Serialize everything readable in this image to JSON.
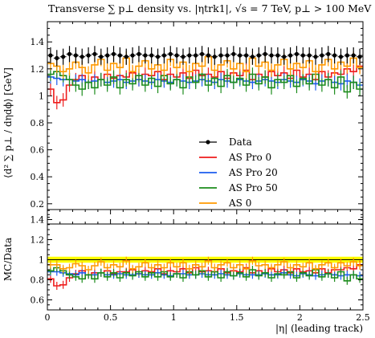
{
  "chart_data": {
    "type": "line",
    "title": "Transverse ∑ p⊥ density vs. |ηtrk1|, √s = 7 TeV, p⊥ > 100 MeV",
    "xlabel": "|η| (leading track)",
    "ylabel_main": "⟨d² ∑ p⊥ / dηdϕ⟩ [GeV]",
    "ylabel_ratio": "MC/Data",
    "xlim": [
      0,
      2.5
    ],
    "ylim_main": [
      0.05,
      1.55
    ],
    "ylim_ratio": [
      0.5,
      1.5
    ],
    "x_ticks": [
      "0",
      "0.5",
      "1",
      "1.5",
      "2",
      "2.5"
    ],
    "y_ticks_main": [
      "0.2",
      "0.4",
      "0.6",
      "0.8",
      "1",
      "1.2",
      "1.4"
    ],
    "y_ticks_ratio": [
      "0.6",
      "0.8",
      "1",
      "1.2",
      "1.4"
    ],
    "legend_position": "lower-right",
    "ratio_band": {
      "low": 0.97,
      "high": 1.03,
      "color": "#ffff00"
    },
    "series": [
      {
        "name": "Data",
        "color": "#000000",
        "style": "points",
        "values": [
          1.3,
          1.28,
          1.29,
          1.31,
          1.3,
          1.29,
          1.3,
          1.31,
          1.29,
          1.3,
          1.31,
          1.3,
          1.29,
          1.3,
          1.31,
          1.3,
          1.3,
          1.29,
          1.3,
          1.31,
          1.3,
          1.29,
          1.3,
          1.3,
          1.31,
          1.3,
          1.29,
          1.3,
          1.3,
          1.31,
          1.3,
          1.3,
          1.29,
          1.3,
          1.31,
          1.3,
          1.3,
          1.29,
          1.3,
          1.31,
          1.3,
          1.3,
          1.29,
          1.3,
          1.31,
          1.3,
          1.29,
          1.3,
          1.3,
          1.29
        ],
        "errors": [
          0.06,
          0.06,
          0.06,
          0.06,
          0.06,
          0.06,
          0.06,
          0.06,
          0.06,
          0.06,
          0.06,
          0.06,
          0.06,
          0.06,
          0.06,
          0.06,
          0.06,
          0.06,
          0.06,
          0.06,
          0.06,
          0.06,
          0.06,
          0.06,
          0.06,
          0.06,
          0.06,
          0.06,
          0.06,
          0.06,
          0.06,
          0.06,
          0.06,
          0.06,
          0.06,
          0.06,
          0.06,
          0.06,
          0.06,
          0.06,
          0.06,
          0.06,
          0.06,
          0.06,
          0.06,
          0.06,
          0.06,
          0.06,
          0.06,
          0.06
        ]
      },
      {
        "name": "AS Pro 0",
        "color": "#ee1c1c",
        "style": "step",
        "values": [
          1.05,
          0.95,
          0.97,
          1.08,
          1.12,
          1.15,
          1.1,
          1.14,
          1.12,
          1.16,
          1.13,
          1.15,
          1.14,
          1.17,
          1.12,
          1.16,
          1.15,
          1.18,
          1.12,
          1.16,
          1.14,
          1.17,
          1.13,
          1.19,
          1.15,
          1.16,
          1.14,
          1.18,
          1.13,
          1.17,
          1.15,
          1.19,
          1.12,
          1.16,
          1.14,
          1.18,
          1.15,
          1.17,
          1.13,
          1.19,
          1.14,
          1.16,
          1.12,
          1.18,
          1.14,
          1.17,
          1.16,
          1.2,
          1.18,
          1.22
        ],
        "ratio": [
          0.81,
          0.74,
          0.75,
          0.82,
          0.86,
          0.89,
          0.85,
          0.87,
          0.87,
          0.89,
          0.86,
          0.88,
          0.88,
          0.9,
          0.86,
          0.89,
          0.88,
          0.91,
          0.86,
          0.89,
          0.88,
          0.91,
          0.87,
          0.92,
          0.88,
          0.89,
          0.88,
          0.91,
          0.87,
          0.89,
          0.88,
          0.92,
          0.87,
          0.89,
          0.87,
          0.91,
          0.88,
          0.9,
          0.87,
          0.91,
          0.88,
          0.89,
          0.87,
          0.91,
          0.87,
          0.9,
          0.9,
          0.92,
          0.91,
          0.95
        ]
      },
      {
        "name": "AS Pro 20",
        "color": "#1c5cee",
        "style": "step",
        "values": [
          1.14,
          1.13,
          1.12,
          1.12,
          1.11,
          1.12,
          1.1,
          1.11,
          1.12,
          1.1,
          1.11,
          1.12,
          1.1,
          1.11,
          1.12,
          1.11,
          1.1,
          1.12,
          1.11,
          1.1,
          1.12,
          1.11,
          1.1,
          1.11,
          1.12,
          1.11,
          1.1,
          1.12,
          1.11,
          1.1,
          1.12,
          1.11,
          1.1,
          1.11,
          1.12,
          1.11,
          1.1,
          1.12,
          1.11,
          1.1,
          1.12,
          1.11,
          1.09,
          1.11,
          1.12,
          1.1,
          1.09,
          1.11,
          1.1,
          1.08
        ],
        "ratio": [
          0.88,
          0.88,
          0.87,
          0.86,
          0.85,
          0.87,
          0.85,
          0.85,
          0.87,
          0.85,
          0.85,
          0.86,
          0.85,
          0.85,
          0.86,
          0.85,
          0.85,
          0.87,
          0.85,
          0.84,
          0.86,
          0.86,
          0.85,
          0.85,
          0.86,
          0.85,
          0.85,
          0.86,
          0.85,
          0.84,
          0.86,
          0.85,
          0.85,
          0.85,
          0.86,
          0.85,
          0.85,
          0.87,
          0.85,
          0.84,
          0.86,
          0.85,
          0.84,
          0.85,
          0.86,
          0.85,
          0.84,
          0.85,
          0.85,
          0.84
        ]
      },
      {
        "name": "AS Pro 50",
        "color": "#1c8c1c",
        "style": "step",
        "values": [
          1.16,
          1.18,
          1.15,
          1.12,
          1.08,
          1.05,
          1.1,
          1.06,
          1.12,
          1.08,
          1.14,
          1.06,
          1.12,
          1.09,
          1.15,
          1.08,
          1.13,
          1.07,
          1.15,
          1.09,
          1.12,
          1.06,
          1.14,
          1.1,
          1.16,
          1.08,
          1.13,
          1.07,
          1.15,
          1.1,
          1.13,
          1.08,
          1.16,
          1.09,
          1.14,
          1.06,
          1.12,
          1.1,
          1.15,
          1.07,
          1.13,
          1.09,
          1.16,
          1.08,
          1.12,
          1.06,
          1.14,
          1.03,
          1.1,
          1.05
        ],
        "ratio": [
          0.89,
          0.92,
          0.89,
          0.85,
          0.83,
          0.81,
          0.85,
          0.81,
          0.87,
          0.83,
          0.87,
          0.82,
          0.87,
          0.84,
          0.88,
          0.83,
          0.87,
          0.83,
          0.88,
          0.83,
          0.86,
          0.82,
          0.88,
          0.85,
          0.89,
          0.83,
          0.88,
          0.82,
          0.88,
          0.84,
          0.87,
          0.83,
          0.9,
          0.84,
          0.87,
          0.82,
          0.86,
          0.85,
          0.88,
          0.82,
          0.87,
          0.84,
          0.9,
          0.83,
          0.86,
          0.82,
          0.88,
          0.79,
          0.85,
          0.81
        ]
      },
      {
        "name": "AS 0",
        "color": "#ff9900",
        "style": "step",
        "values": [
          1.24,
          1.22,
          1.18,
          1.2,
          1.25,
          1.21,
          1.17,
          1.23,
          1.27,
          1.19,
          1.24,
          1.21,
          1.28,
          1.18,
          1.22,
          1.26,
          1.2,
          1.23,
          1.19,
          1.27,
          1.21,
          1.25,
          1.18,
          1.24,
          1.22,
          1.29,
          1.19,
          1.23,
          1.26,
          1.2,
          1.24,
          1.18,
          1.28,
          1.22,
          1.25,
          1.19,
          1.23,
          1.27,
          1.2,
          1.24,
          1.21,
          1.26,
          1.18,
          1.23,
          1.27,
          1.2,
          1.25,
          1.22,
          1.28,
          1.21
        ],
        "ratio": [
          0.95,
          0.95,
          0.91,
          0.92,
          0.96,
          0.94,
          0.9,
          0.94,
          0.98,
          0.92,
          0.95,
          0.93,
          0.99,
          0.91,
          0.93,
          0.97,
          0.92,
          0.95,
          0.92,
          0.97,
          0.93,
          0.97,
          0.91,
          0.95,
          0.93,
          0.99,
          0.92,
          0.95,
          0.97,
          0.92,
          0.95,
          0.91,
          0.99,
          0.94,
          0.95,
          0.92,
          0.95,
          0.98,
          0.92,
          0.95,
          0.93,
          0.97,
          0.91,
          0.95,
          0.97,
          0.92,
          0.97,
          0.94,
          0.98,
          0.94
        ]
      }
    ]
  }
}
